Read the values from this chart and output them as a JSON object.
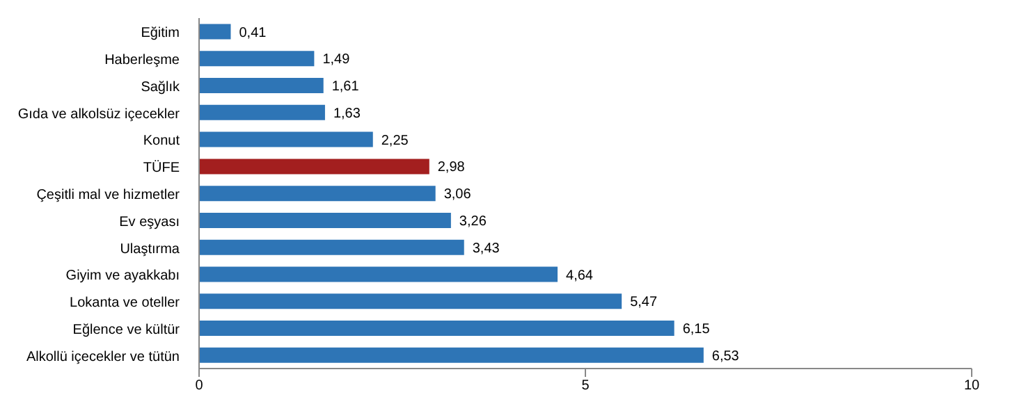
{
  "chart_data": {
    "type": "bar",
    "orientation": "horizontal",
    "categories": [
      "Eğitim",
      "Haberleşme",
      "Sağlık",
      "Gıda ve alkolsüz içecekler",
      "Konut",
      "TÜFE",
      "Çeşitli mal ve hizmetler",
      "Ev eşyası",
      "Ulaştırma",
      "Giyim ve ayakkabı",
      "Lokanta ve oteller",
      "Eğlence ve kültür",
      "Alkollü içecekler ve tütün"
    ],
    "values": [
      0.41,
      1.49,
      1.61,
      1.63,
      2.25,
      2.98,
      3.06,
      3.26,
      3.43,
      4.64,
      5.47,
      6.15,
      6.53
    ],
    "value_labels": [
      "0,41",
      "1,49",
      "1,61",
      "1,63",
      "2,25",
      "2,98",
      "3,06",
      "3,26",
      "3,43",
      "4,64",
      "5,47",
      "6,15",
      "6,53"
    ],
    "colors": [
      "#2e75b6",
      "#2e75b6",
      "#2e75b6",
      "#2e75b6",
      "#2e75b6",
      "#a31f1f",
      "#2e75b6",
      "#2e75b6",
      "#2e75b6",
      "#2e75b6",
      "#2e75b6",
      "#2e75b6",
      "#2e75b6"
    ],
    "xlim": [
      0,
      10
    ],
    "xticks": [
      0,
      5,
      10
    ],
    "grid": false
  }
}
